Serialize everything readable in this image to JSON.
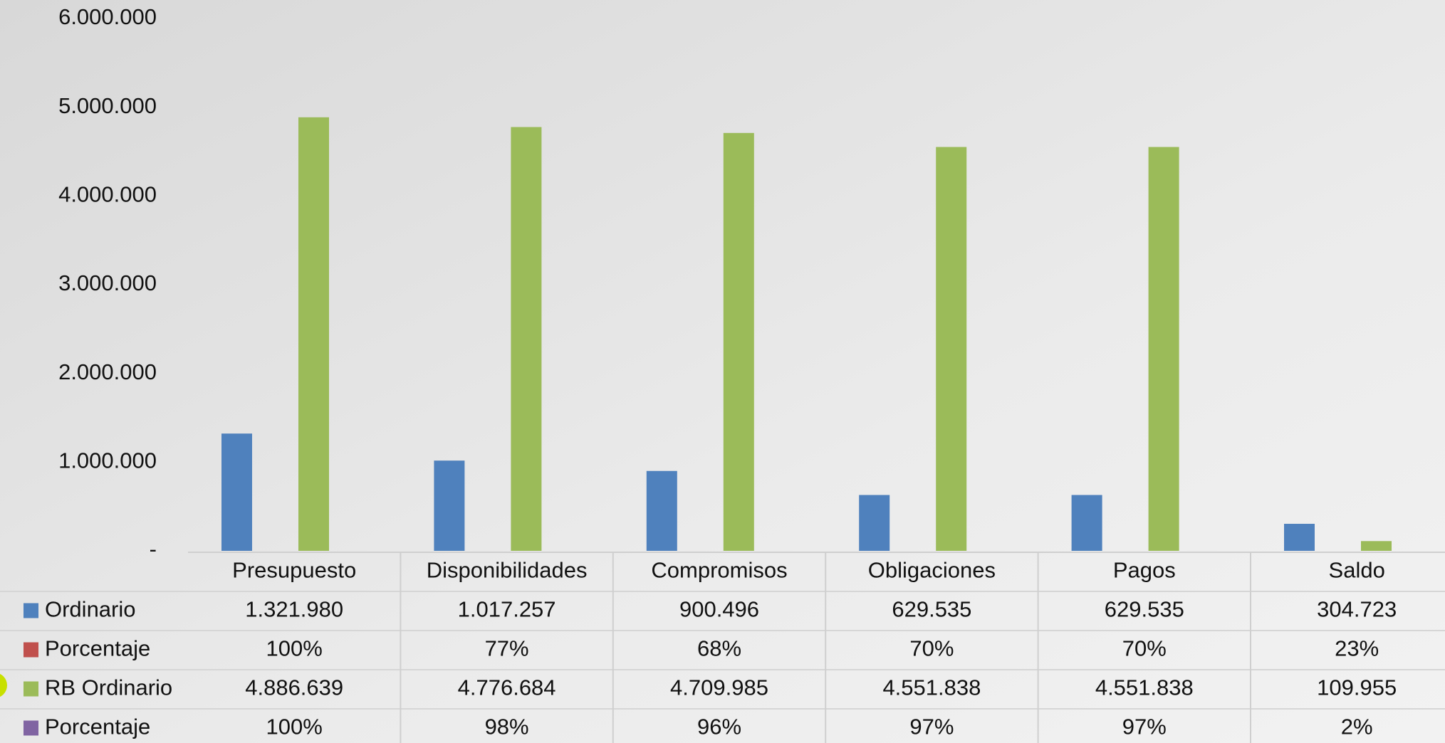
{
  "chart_data": {
    "type": "bar",
    "categories": [
      "Presupuesto",
      "Disponibilidades",
      "Compromisos",
      "Obligaciones",
      "Pagos",
      "Saldo"
    ],
    "series": [
      {
        "name": "Ordinario",
        "color": "#4f81bd",
        "values": [
          1321980,
          1017257,
          900496,
          629535,
          629535,
          304723
        ],
        "value_labels": [
          "1.321.980",
          "1.017.257",
          "900.496",
          "629.535",
          "629.535",
          "304.723"
        ]
      },
      {
        "name": "Porcentaje",
        "color": "#c0504d",
        "values": [
          100,
          77,
          68,
          70,
          70,
          23
        ],
        "value_labels": [
          "100%",
          "77%",
          "68%",
          "70%",
          "70%",
          "23%"
        ]
      },
      {
        "name": "RB Ordinario",
        "color": "#9bbb59",
        "values": [
          4886639,
          4776684,
          4709985,
          4551838,
          4551838,
          109955
        ],
        "value_labels": [
          "4.886.639",
          "4.776.684",
          "4.709.985",
          "4.551.838",
          "4.551.838",
          "109.955"
        ]
      },
      {
        "name": "Porcentaje",
        "color": "#8064a2",
        "values": [
          100,
          98,
          96,
          97,
          97,
          2
        ],
        "value_labels": [
          "100%",
          "98%",
          "96%",
          "97%",
          "97%",
          "2%"
        ]
      }
    ],
    "ylim": [
      0,
      6000000
    ],
    "yticks": [
      {
        "value": 0,
        "label": "-"
      },
      {
        "value": 1000000,
        "label": "1.000.000"
      },
      {
        "value": 2000000,
        "label": "2.000.000"
      },
      {
        "value": 3000000,
        "label": "3.000.000"
      },
      {
        "value": 4000000,
        "label": "4.000.000"
      },
      {
        "value": 5000000,
        "label": "5.000.000"
      },
      {
        "value": 6000000,
        "label": "6.000.000"
      }
    ],
    "data_table": true
  }
}
